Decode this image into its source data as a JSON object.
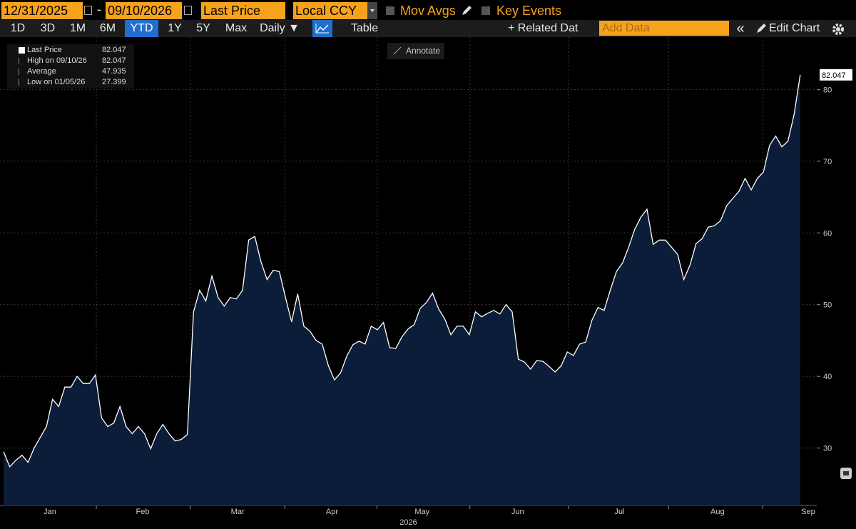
{
  "toolbar": {
    "start_date": "12/31/2025",
    "separator": "-",
    "end_date": "09/10/2026",
    "field": "Last Price",
    "currency": "Local CCY",
    "mov_avgs": "Mov Avgs",
    "key_events": "Key Events",
    "periods": [
      "1D",
      "3D",
      "1M",
      "6M",
      "YTD",
      "1Y",
      "5Y",
      "Max"
    ],
    "selected_period": 4,
    "frequency": "Daily ▼",
    "table": "Table",
    "related": "+ Related Dat",
    "add_data": "Add Data",
    "collapse": "«",
    "edit_chart": "Edit Chart"
  },
  "annotate": "Annotate",
  "chart_data": {
    "type": "area",
    "color": "#0b1d38",
    "line_color": "#ffffff",
    "grid": true,
    "values": [
      29.5,
      27.399,
      28.3,
      29,
      28,
      30,
      31.5,
      33,
      36.8,
      35.8,
      38.5,
      38.5,
      40,
      39,
      39,
      40.2,
      34.2,
      33,
      33.5,
      35.8,
      33,
      32,
      33,
      32,
      29.9,
      32,
      33.3,
      32,
      31,
      31.2,
      31.9,
      49,
      52,
      50.5,
      54,
      51,
      49.8,
      51,
      50.8,
      52,
      59,
      59.5,
      56,
      53.5,
      54.8,
      54.6,
      51,
      47.6,
      51.5,
      47,
      46.3,
      45,
      44.5,
      41.5,
      39.5,
      40.5,
      42.8,
      44.4,
      44.9,
      44.5,
      47,
      46.5,
      47.5,
      44,
      43.9,
      45.5,
      46.6,
      47.2,
      49.5,
      50.3,
      51.6,
      49.4,
      48,
      45.8,
      47,
      47,
      45.8,
      49,
      48.3,
      48.8,
      49.2,
      48.7,
      50,
      49,
      42.4,
      42,
      41,
      42.2,
      42.1,
      41.4,
      40.6,
      41.5,
      43.4,
      42.9,
      44.5,
      44.8,
      47.8,
      49.6,
      49.2,
      52,
      54.6,
      55.8,
      58,
      60.5,
      62.2,
      63.3,
      58.4,
      59,
      59,
      58,
      57,
      53.5,
      55.5,
      58.5,
      59.2,
      60.8,
      61,
      61.7,
      63.8,
      64.8,
      65.8,
      67.6,
      66,
      67.6,
      68.5,
      72.2,
      73.5,
      72,
      72.8,
      76.5,
      82.047
    ],
    "xlim": [
      -0.58,
      132.7
    ],
    "xticks": [
      {
        "value": 7.57,
        "label": "Jan"
      },
      {
        "value": 22.7,
        "label": "Feb"
      },
      {
        "value": 38.2,
        "label": "Mar"
      },
      {
        "value": 53.6,
        "label": "Apr"
      },
      {
        "value": 68.3,
        "label": "May"
      },
      {
        "value": 83.9,
        "label": "Jun"
      },
      {
        "value": 100.5,
        "label": "Jul"
      },
      {
        "value": 116.5,
        "label": "Aug"
      },
      {
        "value": 131.3,
        "label": "Sep"
      }
    ],
    "x_axis_label": "2026",
    "ylim": [
      22,
      87.3
    ],
    "yticks": [
      30,
      40,
      50,
      60,
      70,
      80
    ],
    "legend": [
      {
        "label": "Last Price",
        "value": 82.047
      },
      {
        "label": "High on 09/10/26",
        "value": 82.047
      },
      {
        "label": "Average",
        "value": 47.935
      },
      {
        "label": "Low on 01/05/26",
        "value": 27.399
      }
    ]
  }
}
